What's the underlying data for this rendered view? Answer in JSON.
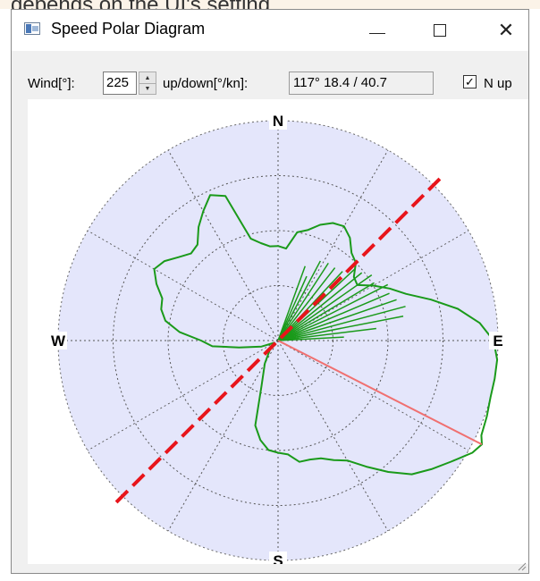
{
  "background_caption": "depends on the UI's setting",
  "window": {
    "title": "Speed Polar Diagram"
  },
  "toolbar": {
    "wind_label": "Wind[°]:",
    "wind_value": "225",
    "updown_label": "up/down[°/kn]:",
    "updown_value": "117° 18.4 / 40.7",
    "north_up_label": "N up",
    "north_up_checked": true
  },
  "compass": {
    "n": "N",
    "e": "E",
    "s": "S",
    "w": "W"
  },
  "chart_data": {
    "type": "polar",
    "title": "",
    "rings": 4,
    "spokes_deg": [
      0,
      30,
      60,
      90,
      120,
      150,
      180,
      210,
      240,
      270,
      300,
      330
    ],
    "orientation": "north-up",
    "wind_direction_deg": 225,
    "highlight_bearing_deg": 117,
    "highlight_speed_label": "18.4 / 40.7",
    "series": [
      {
        "color": "#1a9a1a",
        "polar_outline_deg_radius": [
          [
            0,
            0.43
          ],
          [
            5,
            0.42
          ],
          [
            10,
            0.5
          ],
          [
            15,
            0.52
          ],
          [
            20,
            0.56
          ],
          [
            25,
            0.59
          ],
          [
            30,
            0.6
          ],
          [
            35,
            0.57
          ],
          [
            40,
            0.52
          ],
          [
            45,
            0.5
          ],
          [
            50,
            0.45
          ],
          [
            55,
            0.44
          ],
          [
            60,
            0.5
          ],
          [
            65,
            0.56
          ],
          [
            70,
            0.62
          ],
          [
            75,
            0.72
          ],
          [
            80,
            0.83
          ],
          [
            85,
            0.92
          ],
          [
            90,
            0.98
          ],
          [
            95,
            1.0
          ],
          [
            100,
            1.0
          ],
          [
            105,
            1.0
          ],
          [
            110,
            1.01
          ],
          [
            115,
            1.02
          ],
          [
            117,
            1.04
          ],
          [
            120,
            1.02
          ],
          [
            125,
            0.96
          ],
          [
            130,
            0.91
          ],
          [
            135,
            0.86
          ],
          [
            140,
            0.78
          ],
          [
            145,
            0.7
          ],
          [
            150,
            0.63
          ],
          [
            155,
            0.6
          ],
          [
            160,
            0.57
          ],
          [
            165,
            0.56
          ],
          [
            170,
            0.56
          ],
          [
            175,
            0.52
          ],
          [
            180,
            0.51
          ],
          [
            185,
            0.5
          ],
          [
            190,
            0.46
          ],
          [
            195,
            0.4
          ],
          [
            200,
            0.22
          ],
          [
            210,
            0.12
          ],
          [
            220,
            0.06
          ],
          [
            230,
            0.03
          ],
          [
            240,
            0.02
          ],
          [
            250,
            0.08
          ],
          [
            260,
            0.18
          ],
          [
            265,
            0.3
          ],
          [
            270,
            0.35
          ],
          [
            275,
            0.45
          ],
          [
            280,
            0.52
          ],
          [
            285,
            0.55
          ],
          [
            290,
            0.56
          ],
          [
            295,
            0.61
          ],
          [
            300,
            0.65
          ],
          [
            305,
            0.63
          ],
          [
            310,
            0.59
          ],
          [
            315,
            0.56
          ],
          [
            320,
            0.57
          ],
          [
            325,
            0.63
          ],
          [
            330,
            0.68
          ],
          [
            335,
            0.73
          ],
          [
            340,
            0.7
          ],
          [
            345,
            0.48
          ],
          [
            350,
            0.45
          ],
          [
            355,
            0.43
          ],
          [
            360,
            0.43
          ]
        ],
        "spikes_deg_radius": [
          [
            20,
            0.36
          ],
          [
            24,
            0.32
          ],
          [
            28,
            0.41
          ],
          [
            33,
            0.42
          ],
          [
            38,
            0.42
          ],
          [
            43,
            0.43
          ],
          [
            47,
            0.48
          ],
          [
            51,
            0.49
          ],
          [
            55,
            0.52
          ],
          [
            59,
            0.51
          ],
          [
            63,
            0.56
          ],
          [
            67,
            0.55
          ],
          [
            71,
            0.57
          ],
          [
            75,
            0.6
          ],
          [
            79,
            0.58
          ],
          [
            83,
            0.45
          ],
          [
            87,
            0.3
          ]
        ]
      }
    ]
  }
}
